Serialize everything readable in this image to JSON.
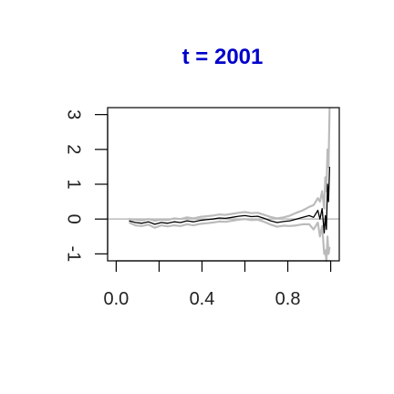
{
  "chart_data": {
    "type": "line",
    "title": "t = 2001",
    "xlabel": "",
    "ylabel": "",
    "xlim": [
      -0.04,
      1.04
    ],
    "ylim": [
      -1.2,
      3.2
    ],
    "x_ticks": [
      0.0,
      0.2,
      0.4,
      0.6,
      0.8,
      1.0
    ],
    "x_tick_labels": [
      "0.0",
      "",
      "0.4",
      "",
      "0.8",
      ""
    ],
    "y_ticks": [
      -1,
      0,
      1,
      2,
      3
    ],
    "y_tick_labels": [
      "-1",
      "0",
      "1",
      "2",
      "3"
    ],
    "reference_line": {
      "y": 0,
      "color": "#bbbbbb"
    },
    "grid": false,
    "series": [
      {
        "role": "estimate",
        "color": "#000000",
        "x": [
          0.06,
          0.09,
          0.12,
          0.15,
          0.18,
          0.21,
          0.24,
          0.27,
          0.3,
          0.33,
          0.36,
          0.39,
          0.42,
          0.45,
          0.48,
          0.51,
          0.54,
          0.57,
          0.6,
          0.63,
          0.66,
          0.69,
          0.72,
          0.75,
          0.78,
          0.81,
          0.84,
          0.87,
          0.9,
          0.92,
          0.94,
          0.95,
          0.96,
          0.97,
          0.975,
          0.98,
          0.985,
          0.99,
          0.995
        ],
        "y": [
          -0.05,
          -0.1,
          -0.12,
          -0.08,
          -0.15,
          -0.1,
          -0.12,
          -0.08,
          -0.1,
          -0.05,
          -0.08,
          -0.04,
          -0.02,
          0.0,
          0.03,
          0.02,
          0.05,
          0.08,
          0.1,
          0.07,
          0.08,
          0.02,
          -0.05,
          -0.1,
          -0.07,
          -0.05,
          0.0,
          0.05,
          0.1,
          0.05,
          0.25,
          0.0,
          0.3,
          -0.4,
          0.1,
          -0.3,
          1.0,
          0.5,
          1.5
        ]
      },
      {
        "role": "upper-band",
        "color": "#bbbbbb",
        "x": [
          0.06,
          0.09,
          0.12,
          0.15,
          0.18,
          0.21,
          0.24,
          0.27,
          0.3,
          0.33,
          0.36,
          0.39,
          0.42,
          0.45,
          0.48,
          0.51,
          0.54,
          0.57,
          0.6,
          0.63,
          0.66,
          0.69,
          0.72,
          0.75,
          0.78,
          0.81,
          0.84,
          0.87,
          0.9,
          0.92,
          0.94,
          0.95,
          0.96,
          0.97,
          0.975,
          0.98,
          0.985,
          0.99,
          0.995
        ],
        "y": [
          0.0,
          -0.02,
          -0.04,
          0.0,
          -0.05,
          -0.02,
          -0.03,
          0.02,
          0.0,
          0.05,
          0.02,
          0.06,
          0.08,
          0.1,
          0.13,
          0.12,
          0.15,
          0.18,
          0.2,
          0.17,
          0.18,
          0.12,
          0.06,
          0.02,
          0.05,
          0.1,
          0.18,
          0.25,
          0.35,
          0.4,
          0.6,
          0.5,
          0.8,
          0.3,
          1.2,
          0.8,
          2.0,
          1.5,
          3.2
        ]
      },
      {
        "role": "lower-band",
        "color": "#bbbbbb",
        "x": [
          0.06,
          0.09,
          0.12,
          0.15,
          0.18,
          0.21,
          0.24,
          0.27,
          0.3,
          0.33,
          0.36,
          0.39,
          0.42,
          0.45,
          0.48,
          0.51,
          0.54,
          0.57,
          0.6,
          0.63,
          0.66,
          0.69,
          0.72,
          0.75,
          0.78,
          0.81,
          0.84,
          0.87,
          0.9,
          0.92,
          0.94,
          0.95,
          0.96,
          0.97,
          0.975,
          0.98,
          0.985,
          0.99,
          0.995
        ],
        "y": [
          -0.1,
          -0.18,
          -0.2,
          -0.16,
          -0.25,
          -0.18,
          -0.21,
          -0.18,
          -0.2,
          -0.15,
          -0.18,
          -0.14,
          -0.12,
          -0.1,
          -0.07,
          -0.08,
          -0.05,
          -0.02,
          0.0,
          -0.03,
          -0.02,
          -0.08,
          -0.16,
          -0.22,
          -0.19,
          -0.2,
          -0.18,
          -0.15,
          -0.15,
          -0.3,
          -0.1,
          -0.5,
          -0.2,
          -1.0,
          -0.9,
          -1.2,
          -0.5,
          -1.0,
          -0.8
        ]
      }
    ]
  }
}
